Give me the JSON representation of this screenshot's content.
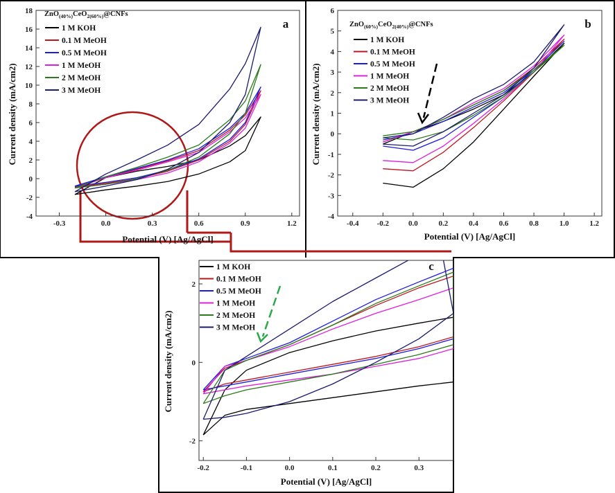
{
  "colors": {
    "1 M KOH": "#000000",
    "0.1 M MeOH": "#c0141c",
    "0.5 M MeOH": "#1c1ce0",
    "1 M MeOH": "#e01ce0",
    "2 M MeOH": "#2a7a1a",
    "3 M MeOH": "#1a1a6e"
  },
  "chart_data": [
    {
      "panel": "a",
      "type": "line",
      "title": "ZnO(40%)CeO2(60%)@CNFs",
      "title_parts": [
        "ZnO",
        "(40%)",
        "CeO",
        "2(60%)",
        "@CNFs"
      ],
      "xlabel": "Potential (V) [Ag/AgCl]",
      "ylabel": "Current density (mA/cm2)",
      "xlim": [
        -0.45,
        1.25
      ],
      "ylim": [
        -4,
        18
      ],
      "xticks": [
        "-0.3",
        "0.0",
        "0.3",
        "0.6",
        "0.9",
        "1.2"
      ],
      "xtick_values": [
        -0.3,
        0.0,
        0.3,
        0.6,
        0.9,
        1.2
      ],
      "yticks": [
        "-4",
        "-2",
        "0",
        "2",
        "4",
        "6",
        "8",
        "10",
        "12",
        "14",
        "16",
        "18"
      ],
      "ytick_values": [
        -4,
        -2,
        0,
        2,
        4,
        6,
        8,
        10,
        12,
        14,
        16,
        18
      ],
      "legend": [
        "1 M KOH",
        "0.1 M MeOH",
        "0.5 M MeOH",
        "1 M MeOH",
        "2 M MeOH",
        "3 M MeOH"
      ],
      "series": [
        {
          "name": "1 M KOH",
          "x": [
            -0.2,
            0.0,
            0.2,
            0.4,
            0.6,
            0.8,
            0.9,
            1.0,
            1.0,
            0.9,
            0.8,
            0.6,
            0.4,
            0.2,
            0.0,
            -0.2
          ],
          "y": [
            -1.7,
            0.1,
            0.8,
            1.3,
            2.0,
            3.5,
            4.6,
            6.6,
            6.6,
            3.0,
            1.8,
            0.5,
            -0.3,
            -0.8,
            -1.2,
            -1.7
          ]
        },
        {
          "name": "0.1 M MeOH",
          "x": [
            -0.2,
            0.0,
            0.2,
            0.4,
            0.6,
            0.8,
            0.9,
            1.0,
            1.0,
            0.9,
            0.8,
            0.6,
            0.4,
            0.2,
            0.0,
            -0.2
          ],
          "y": [
            -0.9,
            0.1,
            1.0,
            1.9,
            3.0,
            5.2,
            6.8,
            9.4,
            9.4,
            5.8,
            4.0,
            2.0,
            0.8,
            0.0,
            -0.5,
            -0.9
          ]
        },
        {
          "name": "0.5 M MeOH",
          "x": [
            -0.2,
            0.0,
            0.2,
            0.4,
            0.6,
            0.8,
            0.9,
            1.0,
            1.0,
            0.9,
            0.8,
            0.6,
            0.4,
            0.2,
            0.0,
            -0.2
          ],
          "y": [
            -0.8,
            0.2,
            1.1,
            2.0,
            3.2,
            5.4,
            7.0,
            9.8,
            9.8,
            6.0,
            4.2,
            2.1,
            0.9,
            0.1,
            -0.4,
            -0.8
          ]
        },
        {
          "name": "1 M MeOH",
          "x": [
            -0.2,
            0.0,
            0.2,
            0.4,
            0.6,
            0.8,
            0.9,
            1.0,
            1.0,
            0.9,
            0.8,
            0.6,
            0.4,
            0.2,
            0.0,
            -0.2
          ],
          "y": [
            -1.0,
            0.1,
            0.9,
            1.8,
            2.8,
            5.0,
            6.5,
            9.0,
            9.0,
            5.4,
            3.8,
            1.8,
            0.6,
            -0.1,
            -0.6,
            -1.0
          ]
        },
        {
          "name": "2 M MeOH",
          "x": [
            -0.2,
            0.0,
            0.2,
            0.4,
            0.6,
            0.8,
            0.9,
            1.0,
            1.0,
            0.9,
            0.8,
            0.6,
            0.4,
            0.2,
            0.0,
            -0.2
          ],
          "y": [
            -1.0,
            0.2,
            1.2,
            2.3,
            3.6,
            6.3,
            8.3,
            12.2,
            12.2,
            7.0,
            4.8,
            2.3,
            0.9,
            0.0,
            -0.6,
            -1.0
          ]
        },
        {
          "name": "3 M MeOH",
          "x": [
            -0.2,
            0.0,
            0.2,
            0.4,
            0.6,
            0.8,
            0.9,
            1.0,
            1.0,
            0.9,
            0.8,
            0.6,
            0.4,
            0.2,
            0.0,
            -0.2
          ],
          "y": [
            -1.4,
            0.5,
            2.0,
            3.6,
            5.8,
            9.6,
            12.3,
            16.2,
            16.2,
            9.0,
            6.0,
            2.8,
            1.0,
            -0.1,
            -0.8,
            -1.4
          ]
        }
      ]
    },
    {
      "panel": "b",
      "type": "line",
      "title": "ZnO(60%)CeO2(40%)@CNFs",
      "title_parts": [
        "ZnO",
        "(60%)",
        "CeO",
        "2(40%)",
        "@CNFs"
      ],
      "xlabel": "Potential (V) [Ag/AgCl]",
      "ylabel": "Current density (mA/cm2)",
      "xlim": [
        -0.5,
        1.25
      ],
      "ylim": [
        -4,
        6
      ],
      "xticks": [
        "-0.4",
        "-0.2",
        "0.0",
        "0.2",
        "0.4",
        "0.6",
        "0.8",
        "1.0",
        "1.2"
      ],
      "xtick_values": [
        -0.4,
        -0.2,
        0.0,
        0.2,
        0.4,
        0.6,
        0.8,
        1.0,
        1.2
      ],
      "yticks": [
        "-4",
        "-3",
        "-2",
        "-1",
        "0",
        "1",
        "2",
        "3",
        "4",
        "5",
        "6"
      ],
      "ytick_values": [
        -4,
        -3,
        -2,
        -1,
        0,
        1,
        2,
        3,
        4,
        5,
        6
      ],
      "legend": [
        "1 M KOH",
        "0.1 M MeOH",
        "0.5 M MeOH",
        "1 M MeOH",
        "2 M MeOH",
        "3 M MeOH"
      ],
      "series": [
        {
          "name": "1 M KOH",
          "x": [
            -0.2,
            0.0,
            0.2,
            0.4,
            0.6,
            0.8,
            1.0,
            1.0,
            0.8,
            0.6,
            0.4,
            0.2,
            0.0,
            -0.2
          ],
          "y": [
            -0.5,
            0.1,
            0.6,
            1.2,
            1.9,
            3.0,
            4.4,
            4.4,
            2.8,
            1.2,
            -0.4,
            -1.7,
            -2.6,
            -2.4
          ]
        },
        {
          "name": "0.1 M MeOH",
          "x": [
            -0.2,
            0.0,
            0.2,
            0.4,
            0.6,
            0.8,
            1.0,
            1.0,
            0.8,
            0.6,
            0.4,
            0.2,
            0.0,
            -0.2
          ],
          "y": [
            -0.4,
            0.1,
            0.7,
            1.4,
            2.1,
            3.2,
            4.6,
            4.6,
            3.0,
            1.6,
            0.3,
            -0.9,
            -1.8,
            -1.7
          ]
        },
        {
          "name": "0.5 M MeOH",
          "x": [
            -0.2,
            0.0,
            0.2,
            0.4,
            0.6,
            0.8,
            1.0,
            1.0,
            0.8,
            0.6,
            0.4,
            0.2,
            0.0,
            -0.2
          ],
          "y": [
            -0.3,
            0.0,
            0.6,
            1.3,
            2.0,
            3.1,
            4.5,
            4.5,
            3.1,
            1.8,
            0.8,
            -0.2,
            -0.8,
            -0.6
          ]
        },
        {
          "name": "1 M MeOH",
          "x": [
            -0.2,
            0.0,
            0.2,
            0.4,
            0.6,
            0.8,
            1.0,
            1.0,
            0.8,
            0.6,
            0.4,
            0.2,
            0.0,
            -0.2
          ],
          "y": [
            -0.4,
            0.1,
            0.7,
            1.5,
            2.2,
            3.3,
            4.8,
            4.8,
            3.0,
            1.7,
            0.5,
            -0.6,
            -1.4,
            -1.3
          ]
        },
        {
          "name": "2 M MeOH",
          "x": [
            -0.2,
            0.0,
            0.2,
            0.4,
            0.6,
            0.8,
            1.0,
            1.0,
            0.8,
            0.6,
            0.4,
            0.2,
            0.0,
            -0.2
          ],
          "y": [
            -0.1,
            0.1,
            0.7,
            1.4,
            2.1,
            3.1,
            4.3,
            4.3,
            3.0,
            1.8,
            0.9,
            0.1,
            -0.3,
            -0.2
          ]
        },
        {
          "name": "3 M MeOH",
          "x": [
            -0.2,
            0.0,
            0.2,
            0.4,
            0.6,
            0.8,
            1.0,
            1.0,
            0.8,
            0.6,
            0.4,
            0.2,
            0.0,
            -0.2
          ],
          "y": [
            -0.2,
            0.0,
            0.8,
            1.7,
            2.4,
            3.5,
            5.3,
            5.3,
            3.2,
            1.9,
            1.0,
            0.1,
            -0.6,
            -0.5
          ]
        }
      ]
    },
    {
      "panel": "c",
      "type": "line",
      "title": "",
      "xlabel": "Potential (V) [Ag/AgCl]",
      "ylabel": "Current density (mA/cm2)",
      "xlim": [
        -0.21,
        0.38
      ],
      "ylim": [
        -2.5,
        2.6
      ],
      "xticks": [
        "-0.2",
        "-0.1",
        "0.0",
        "0.1",
        "0.2",
        "0.3"
      ],
      "xtick_values": [
        -0.2,
        -0.1,
        0.0,
        0.1,
        0.2,
        0.3
      ],
      "yticks": [
        "-2",
        "0",
        "2"
      ],
      "ytick_values": [
        -2,
        0,
        2
      ],
      "legend": [
        "1 M KOH",
        "0.1 M MeOH",
        "0.5 M MeOH",
        "1 M MeOH",
        "2 M MeOH",
        "3 M MeOH"
      ],
      "series": [
        {
          "name": "1 M KOH",
          "x": [
            -0.2,
            -0.15,
            -0.1,
            0.0,
            0.1,
            0.2,
            0.3,
            0.38,
            0.38,
            0.3,
            0.2,
            0.1,
            0.0,
            -0.1,
            -0.15,
            -0.2
          ],
          "y": [
            -1.85,
            -0.7,
            -0.2,
            0.25,
            0.55,
            0.8,
            1.0,
            1.15,
            -0.5,
            -0.6,
            -0.75,
            -0.9,
            -1.05,
            -1.2,
            -1.35,
            -1.85
          ]
        },
        {
          "name": "0.1 M MeOH",
          "x": [
            -0.2,
            -0.15,
            -0.1,
            0.0,
            0.1,
            0.2,
            0.3,
            0.38,
            0.38,
            0.3,
            0.2,
            0.1,
            0.0,
            -0.1,
            -0.15,
            -0.2
          ],
          "y": [
            -0.75,
            -0.15,
            0.05,
            0.45,
            0.95,
            1.45,
            1.9,
            2.2,
            0.65,
            0.4,
            0.15,
            -0.05,
            -0.25,
            -0.45,
            -0.55,
            -0.75
          ]
        },
        {
          "name": "0.5 M MeOH",
          "x": [
            -0.2,
            -0.15,
            -0.1,
            0.0,
            0.1,
            0.2,
            0.3,
            0.38,
            0.38,
            0.3,
            0.2,
            0.1,
            0.0,
            -0.1,
            -0.15,
            -0.2
          ],
          "y": [
            -0.7,
            -0.1,
            0.1,
            0.5,
            1.05,
            1.6,
            2.05,
            2.4,
            0.6,
            0.35,
            0.1,
            -0.1,
            -0.3,
            -0.5,
            -0.6,
            -0.7
          ]
        },
        {
          "name": "1 M MeOH",
          "x": [
            -0.2,
            -0.15,
            -0.1,
            0.0,
            0.1,
            0.2,
            0.3,
            0.38,
            0.38,
            0.3,
            0.2,
            0.1,
            0.0,
            -0.1,
            -0.15,
            -0.2
          ],
          "y": [
            -0.8,
            -0.1,
            0.05,
            0.4,
            0.85,
            1.25,
            1.6,
            1.9,
            0.35,
            0.1,
            -0.1,
            -0.3,
            -0.45,
            -0.6,
            -0.7,
            -0.8
          ]
        },
        {
          "name": "2 M MeOH",
          "x": [
            -0.2,
            -0.15,
            -0.1,
            0.0,
            0.1,
            0.2,
            0.3,
            0.38,
            0.38,
            0.3,
            0.2,
            0.1,
            0.0,
            -0.1,
            -0.15,
            -0.2
          ],
          "y": [
            -1.05,
            -0.2,
            0.05,
            0.45,
            0.95,
            1.5,
            1.95,
            2.3,
            0.45,
            0.2,
            -0.05,
            -0.3,
            -0.5,
            -0.7,
            -0.85,
            -1.05
          ]
        },
        {
          "name": "3 M MeOH",
          "x": [
            -0.2,
            -0.15,
            -0.1,
            0.0,
            0.1,
            0.2,
            0.3,
            0.35,
            0.38,
            0.3,
            0.2,
            0.1,
            0.0,
            -0.1,
            -0.15,
            -0.2
          ],
          "y": [
            -1.45,
            -0.2,
            0.15,
            0.85,
            1.55,
            2.15,
            2.75,
            3.0,
            1.25,
            0.6,
            0.0,
            -0.55,
            -1.0,
            -1.3,
            -1.4,
            -1.45
          ]
        }
      ]
    }
  ]
}
